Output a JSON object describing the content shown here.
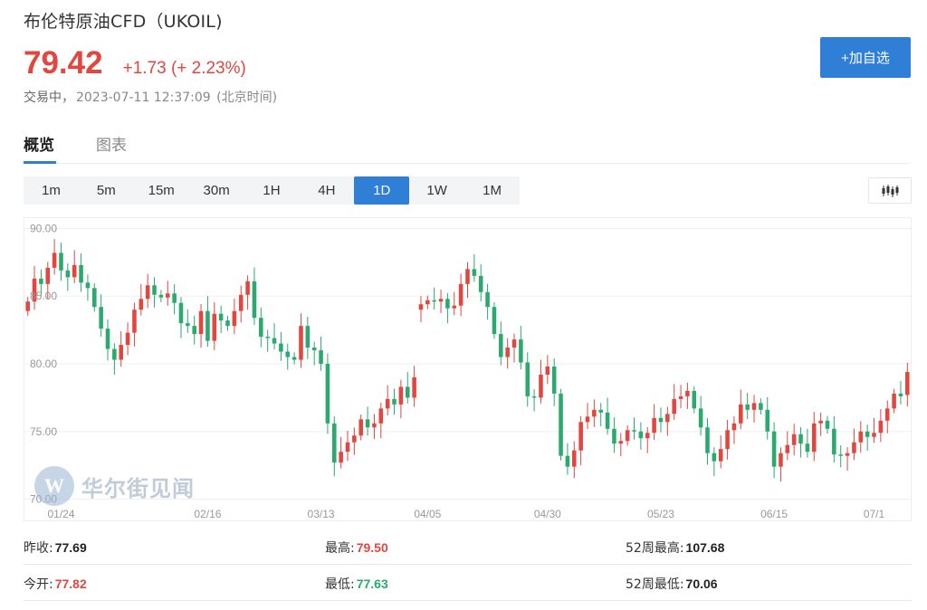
{
  "header": {
    "title": "布伦特原油CFD（UKOIL)",
    "price": "79.42",
    "change": "+1.73 (+ 2.23%)",
    "status_label": "交易中，",
    "timestamp": "2023-07-11 12:37:09",
    "timezone": "(北京时间)",
    "add_watchlist": "+加自选"
  },
  "tabs": [
    {
      "label": "概览",
      "active": true
    },
    {
      "label": "图表",
      "active": false
    }
  ],
  "periods": [
    "1m",
    "5m",
    "15m",
    "30m",
    "1H",
    "4H",
    "1D",
    "1W",
    "1M"
  ],
  "active_period": "1D",
  "chart_type_icon": "candlestick-icon",
  "watermark": {
    "logo": "W",
    "text": "华尔街见闻"
  },
  "colors": {
    "up": "#e2463f",
    "down": "#2aaa6e",
    "accent": "#2f7fd6"
  },
  "stats": {
    "prev_close_label": "昨收:",
    "prev_close": "77.69",
    "high_label": "最高:",
    "high": "79.50",
    "week52_high_label": "52周最高:",
    "week52_high": "107.68",
    "open_label": "今开:",
    "open": "77.82",
    "low_label": "最低:",
    "low": "77.63",
    "week52_low_label": "52周最低:",
    "week52_low": "70.06"
  },
  "chart_data": {
    "type": "candlestick",
    "y_ticks": [
      "90.00",
      "85.00",
      "80.00",
      "75.00",
      "70.00"
    ],
    "ylim": [
      69.5,
      90.5
    ],
    "x_ticks": [
      {
        "label": "01/24",
        "index": 5
      },
      {
        "label": "02/16",
        "index": 27
      },
      {
        "label": "03/13",
        "index": 44
      },
      {
        "label": "04/05",
        "index": 60
      },
      {
        "label": "04/30",
        "index": 78
      },
      {
        "label": "05/23",
        "index": 95
      },
      {
        "label": "06/15",
        "index": 112
      },
      {
        "label": "07/1",
        "index": 127
      }
    ],
    "closes": [
      84.6,
      86.3,
      85.9,
      87.1,
      88.2,
      86.9,
      86.4,
      87.3,
      86.0,
      85.6,
      84.2,
      82.6,
      81.1,
      80.3,
      81.4,
      82.3,
      84.0,
      84.8,
      85.8,
      85.1,
      84.9,
      85.2,
      84.5,
      83.0,
      82.8,
      82.2,
      83.9,
      81.7,
      83.7,
      83.2,
      82.8,
      83.9,
      85.1,
      86.1,
      83.4,
      82.0,
      81.9,
      81.5,
      80.9,
      80.5,
      80.3,
      82.8,
      81.2,
      81.0,
      80.0,
      75.6,
      72.7,
      73.5,
      74.2,
      74.7,
      75.9,
      75.3,
      75.6,
      76.7,
      77.4,
      77.0,
      78.3,
      77.5,
      79.0,
      84.4,
      84.7,
      84.6,
      84.8,
      84.1,
      84.3,
      85.9,
      87.0,
      86.5,
      85.3,
      84.2,
      82.2,
      80.5,
      81.2,
      81.8,
      80.1,
      77.6,
      77.5,
      79.2,
      79.8,
      77.8,
      73.2,
      72.4,
      73.6,
      75.7,
      76.1,
      76.6,
      76.4,
      75.2,
      74.1,
      74.3,
      75.1,
      75.0,
      74.5,
      74.9,
      76.0,
      75.7,
      76.3,
      77.4,
      77.6,
      78.0,
      76.7,
      75.3,
      73.4,
      72.8,
      73.7,
      75.1,
      75.6,
      77.0,
      76.6,
      77.1,
      76.6,
      75.0,
      72.4,
      73.4,
      74.0,
      74.8,
      74.1,
      73.5,
      75.6,
      75.8,
      75.2,
      73.3,
      73.2,
      73.4,
      74.2,
      75.0,
      74.6,
      74.9,
      75.8,
      76.7,
      77.8,
      77.6,
      79.4
    ],
    "opens": [
      83.9,
      84.6,
      86.3,
      85.9,
      87.1,
      88.2,
      86.9,
      86.4,
      87.3,
      86.0,
      85.6,
      84.2,
      82.6,
      81.1,
      80.3,
      81.4,
      82.3,
      84.0,
      84.8,
      85.8,
      85.1,
      84.9,
      85.2,
      84.5,
      83.0,
      82.8,
      82.2,
      83.9,
      81.7,
      83.7,
      83.2,
      82.8,
      83.9,
      85.1,
      86.1,
      83.4,
      82.0,
      81.9,
      81.5,
      80.9,
      80.5,
      80.3,
      82.8,
      81.2,
      81.0,
      80.0,
      75.6,
      72.7,
      73.5,
      74.2,
      74.7,
      75.9,
      75.3,
      75.6,
      76.7,
      77.4,
      77.0,
      78.3,
      77.5,
      84.0,
      84.4,
      84.7,
      84.6,
      84.8,
      84.1,
      84.3,
      85.9,
      87.0,
      86.5,
      85.3,
      84.2,
      82.2,
      80.5,
      81.2,
      81.8,
      80.1,
      77.6,
      77.5,
      79.2,
      79.8,
      77.8,
      73.2,
      72.4,
      73.6,
      75.7,
      76.1,
      76.6,
      76.4,
      75.2,
      74.1,
      74.3,
      75.1,
      75.0,
      74.5,
      74.9,
      76.0,
      75.7,
      76.3,
      77.4,
      77.6,
      78.0,
      76.7,
      75.3,
      73.4,
      72.8,
      73.7,
      75.1,
      75.6,
      77.0,
      76.6,
      77.1,
      76.6,
      75.0,
      72.4,
      73.4,
      74.0,
      74.8,
      74.1,
      73.5,
      75.6,
      75.8,
      75.2,
      73.3,
      73.2,
      73.4,
      74.2,
      75.0,
      74.6,
      74.9,
      75.8,
      76.7,
      77.8,
      77.7
    ]
  }
}
